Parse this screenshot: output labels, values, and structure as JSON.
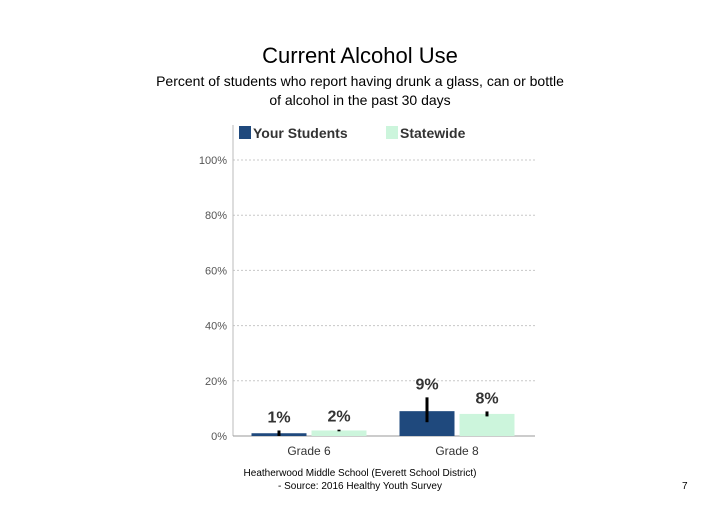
{
  "chart_data": {
    "type": "bar",
    "title": "Current Alcohol Use",
    "subtitle": "Percent of students who report having drunk a glass, can or bottle of alcohol in the past 30 days",
    "categories": [
      "Grade 6",
      "Grade 8"
    ],
    "series": [
      {
        "name": "Your Students",
        "color": "#1f497d",
        "values": [
          1,
          9
        ],
        "labels": [
          "1%",
          "9%"
        ],
        "ci": [
          [
            0,
            2
          ],
          [
            5,
            14
          ]
        ]
      },
      {
        "name": "Statewide",
        "color": "#ccf5dc",
        "values": [
          2,
          8
        ],
        "labels": [
          "2%",
          "8%"
        ],
        "ci": [
          [
            1.7,
            2.3
          ],
          [
            7.1,
            8.9
          ]
        ]
      }
    ],
    "ylim": [
      0,
      100
    ],
    "yticks": [
      "0%",
      "20%",
      "40%",
      "60%",
      "80%",
      "100%"
    ],
    "ytick_values": [
      0,
      20,
      40,
      60,
      80,
      100
    ],
    "grid": true,
    "legend": "top"
  },
  "footer": {
    "line1": "Heatherwood Middle School (Everett School District)",
    "line2": "- Source: 2016 Healthy Youth Survey"
  },
  "page_number": "7"
}
